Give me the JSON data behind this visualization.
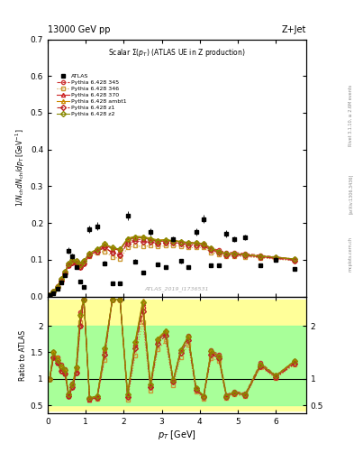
{
  "title_top": "13000 GeV pp",
  "title_right": "Z+Jet",
  "plot_title": "Scalar Σ(p_T) (ATLAS UE in Z production)",
  "ylabel_main": "1/N_{ch} dN_{ch}/dp_T [GeV]",
  "ylabel_ratio": "Ratio to ATLAS",
  "xlabel": "p_{T} [GeV]",
  "rivet_label": "Rivet 3.1.10, ≥ 2.6M events",
  "arxiv_label": "[arXiv:1306.3436]",
  "mcplots_label": "mcplots.cern.ch",
  "atlas_ref": "ATLAS_2019_I1736531",
  "xlim": [
    0.0,
    6.8
  ],
  "ylim_main": [
    0.0,
    0.7
  ],
  "ylim_ratio": [
    0.35,
    2.55
  ],
  "atlas_x": [
    0.05,
    0.15,
    0.25,
    0.35,
    0.45,
    0.55,
    0.65,
    0.75,
    0.85,
    0.95,
    1.1,
    1.3,
    1.5,
    1.7,
    1.9,
    2.1,
    2.3,
    2.5,
    2.7,
    2.9,
    3.1,
    3.3,
    3.5,
    3.7,
    3.9,
    4.1,
    4.3,
    4.5,
    4.7,
    4.9,
    5.2,
    5.6,
    6.0,
    6.5
  ],
  "atlas_y": [
    0.005,
    0.01,
    0.02,
    0.038,
    0.057,
    0.125,
    0.11,
    0.08,
    0.04,
    0.025,
    0.183,
    0.191,
    0.091,
    0.036,
    0.036,
    0.221,
    0.096,
    0.066,
    0.176,
    0.087,
    0.081,
    0.156,
    0.097,
    0.081,
    0.176,
    0.211,
    0.086,
    0.086,
    0.171,
    0.156,
    0.161,
    0.086,
    0.101,
    0.076
  ],
  "atlas_yerr": [
    0.001,
    0.001,
    0.002,
    0.003,
    0.004,
    0.008,
    0.007,
    0.005,
    0.003,
    0.002,
    0.01,
    0.011,
    0.006,
    0.003,
    0.003,
    0.012,
    0.006,
    0.004,
    0.009,
    0.005,
    0.005,
    0.008,
    0.006,
    0.005,
    0.009,
    0.011,
    0.005,
    0.005,
    0.009,
    0.008,
    0.008,
    0.005,
    0.006,
    0.005
  ],
  "mc_x": [
    0.05,
    0.15,
    0.25,
    0.35,
    0.45,
    0.55,
    0.65,
    0.75,
    0.85,
    0.95,
    1.1,
    1.3,
    1.5,
    1.7,
    1.9,
    2.1,
    2.3,
    2.5,
    2.7,
    2.9,
    3.1,
    3.3,
    3.5,
    3.7,
    3.9,
    4.1,
    4.3,
    4.5,
    4.7,
    4.9,
    5.2,
    5.6,
    6.0,
    6.5
  ],
  "p345_y": [
    0.005,
    0.015,
    0.028,
    0.048,
    0.068,
    0.09,
    0.1,
    0.098,
    0.09,
    0.098,
    0.118,
    0.128,
    0.133,
    0.12,
    0.115,
    0.148,
    0.156,
    0.155,
    0.153,
    0.15,
    0.152,
    0.152,
    0.15,
    0.147,
    0.147,
    0.144,
    0.132,
    0.126,
    0.12,
    0.12,
    0.117,
    0.112,
    0.108,
    0.102
  ],
  "p346_y": [
    0.005,
    0.014,
    0.027,
    0.046,
    0.065,
    0.086,
    0.096,
    0.093,
    0.083,
    0.092,
    0.11,
    0.119,
    0.123,
    0.108,
    0.103,
    0.133,
    0.138,
    0.136,
    0.138,
    0.136,
    0.138,
    0.138,
    0.137,
    0.133,
    0.133,
    0.133,
    0.12,
    0.115,
    0.11,
    0.11,
    0.108,
    0.105,
    0.102,
    0.097
  ],
  "p370_y": [
    0.005,
    0.014,
    0.026,
    0.044,
    0.063,
    0.085,
    0.093,
    0.09,
    0.08,
    0.09,
    0.112,
    0.127,
    0.14,
    0.13,
    0.126,
    0.155,
    0.16,
    0.16,
    0.155,
    0.15,
    0.151,
    0.151,
    0.149,
    0.144,
    0.144,
    0.141,
    0.129,
    0.121,
    0.115,
    0.115,
    0.112,
    0.108,
    0.105,
    0.1
  ],
  "pambt1_y": [
    0.005,
    0.015,
    0.028,
    0.047,
    0.067,
    0.089,
    0.099,
    0.097,
    0.088,
    0.097,
    0.118,
    0.129,
    0.143,
    0.133,
    0.129,
    0.159,
    0.164,
    0.163,
    0.159,
    0.154,
    0.155,
    0.152,
    0.15,
    0.146,
    0.146,
    0.143,
    0.131,
    0.123,
    0.117,
    0.117,
    0.114,
    0.11,
    0.107,
    0.102
  ],
  "pz1_y": [
    0.005,
    0.014,
    0.026,
    0.044,
    0.063,
    0.085,
    0.093,
    0.09,
    0.08,
    0.09,
    0.113,
    0.123,
    0.133,
    0.119,
    0.113,
    0.145,
    0.151,
    0.15,
    0.148,
    0.145,
    0.147,
    0.147,
    0.145,
    0.14,
    0.14,
    0.138,
    0.126,
    0.119,
    0.113,
    0.113,
    0.111,
    0.107,
    0.104,
    0.098
  ],
  "pz2_y": [
    0.005,
    0.015,
    0.027,
    0.047,
    0.067,
    0.089,
    0.099,
    0.097,
    0.088,
    0.097,
    0.118,
    0.129,
    0.143,
    0.133,
    0.129,
    0.157,
    0.162,
    0.161,
    0.157,
    0.152,
    0.154,
    0.152,
    0.15,
    0.146,
    0.146,
    0.143,
    0.131,
    0.123,
    0.117,
    0.117,
    0.114,
    0.11,
    0.107,
    0.102
  ],
  "color_345": "#cc3333",
  "color_346": "#cc9933",
  "color_370": "#cc2222",
  "color_ambt1": "#cc8800",
  "color_z1": "#bb2222",
  "color_z2": "#888800",
  "bg_color": "#ffffff"
}
